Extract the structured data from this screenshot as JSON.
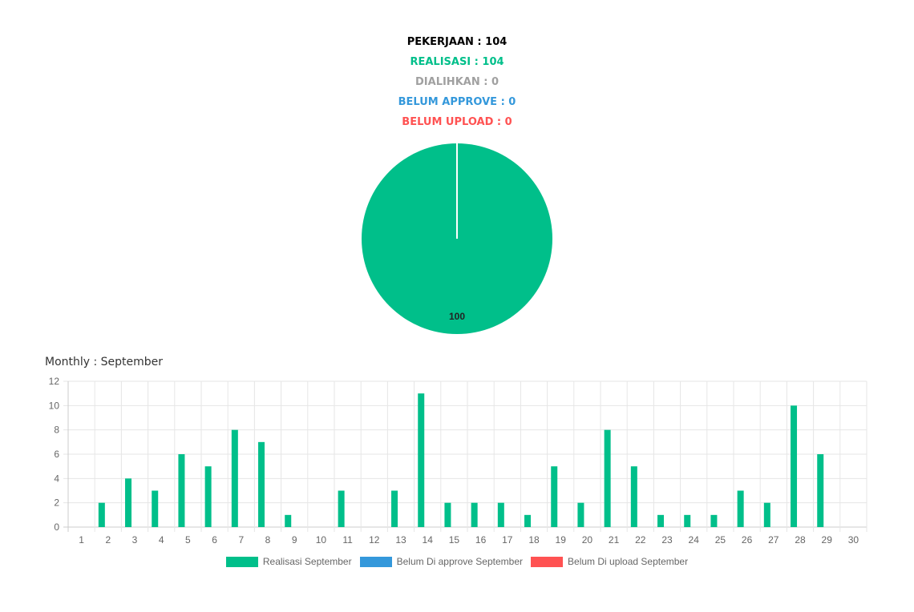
{
  "summary": {
    "pekerjaan": "PEKERJAAN : 104",
    "realisasi": "REALISASI : 104",
    "dialihkan": "DIALIHKAN : 0",
    "belum_approve": "BELUM APPROVE : 0",
    "belum_upload": "BELUM UPLOAD : 0"
  },
  "colors": {
    "realisasi": "#00bf8a",
    "dialihkan": "#a0a0a0",
    "belum_approve": "#3498db",
    "belum_upload": "#ff5252",
    "pekerjaan": "#000000"
  },
  "monthly_title": "Monthly : September",
  "chart_data": [
    {
      "type": "pie",
      "slices": [
        {
          "name": "Realisasi",
          "value": 100,
          "label": "100",
          "color": "#00bf8a"
        }
      ]
    },
    {
      "type": "bar",
      "categories": [
        "1",
        "2",
        "3",
        "4",
        "5",
        "6",
        "7",
        "8",
        "9",
        "10",
        "11",
        "12",
        "13",
        "14",
        "15",
        "16",
        "17",
        "18",
        "19",
        "20",
        "21",
        "22",
        "23",
        "24",
        "25",
        "26",
        "27",
        "28",
        "29",
        "30"
      ],
      "series": [
        {
          "name": "Realisasi September",
          "color": "#00bf8a",
          "values": [
            0,
            2,
            4,
            3,
            6,
            5,
            8,
            7,
            1,
            0,
            3,
            0,
            3,
            11,
            2,
            2,
            2,
            1,
            5,
            2,
            8,
            5,
            1,
            1,
            1,
            3,
            2,
            10,
            6,
            0
          ]
        },
        {
          "name": "Belum Di approve September",
          "color": "#3498db",
          "values": [
            0,
            0,
            0,
            0,
            0,
            0,
            0,
            0,
            0,
            0,
            0,
            0,
            0,
            0,
            0,
            0,
            0,
            0,
            0,
            0,
            0,
            0,
            0,
            0,
            0,
            0,
            0,
            0,
            0,
            0
          ]
        },
        {
          "name": "Belum Di upload September",
          "color": "#ff5252",
          "values": [
            0,
            0,
            0,
            0,
            0,
            0,
            0,
            0,
            0,
            0,
            0,
            0,
            0,
            0,
            0,
            0,
            0,
            0,
            0,
            0,
            0,
            0,
            0,
            0,
            0,
            0,
            0,
            0,
            0,
            0
          ]
        }
      ],
      "ylim": [
        0,
        12
      ],
      "yticks": [
        "0",
        "2",
        "4",
        "6",
        "8",
        "10",
        "12"
      ],
      "grid": true,
      "legend_position": "bottom"
    }
  ]
}
